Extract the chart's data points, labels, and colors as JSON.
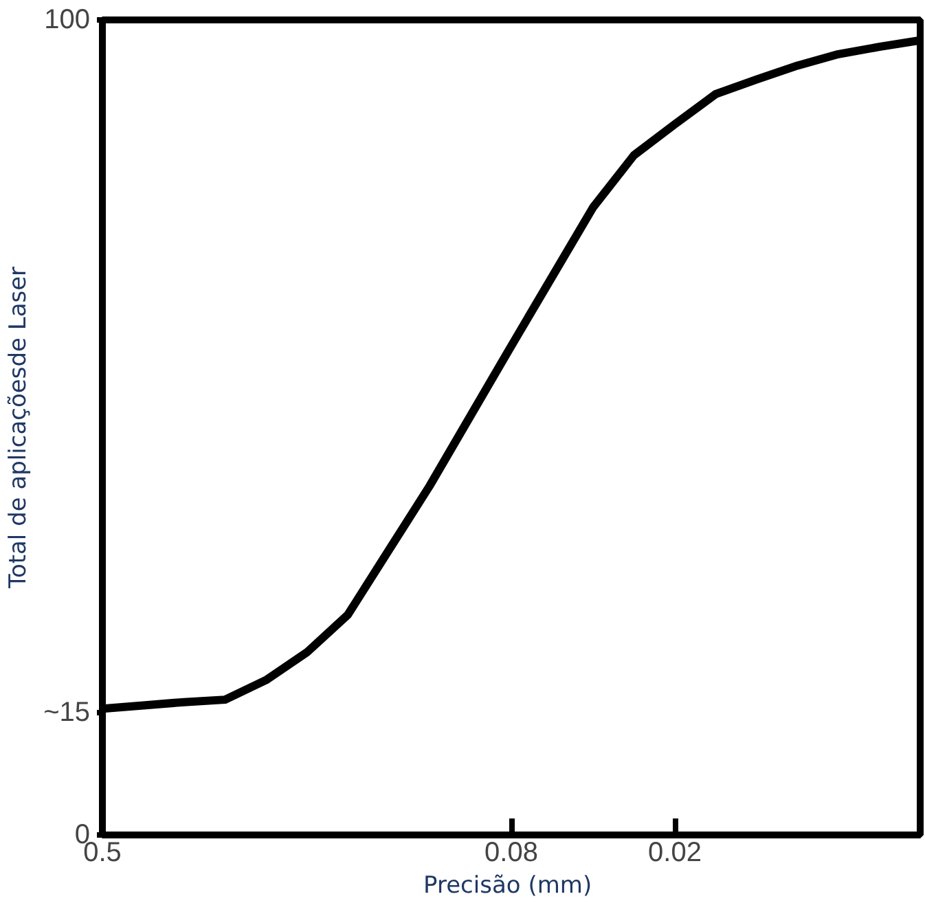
{
  "chart_data": {
    "type": "line",
    "xlabel": "Precisão  (mm)",
    "ylabel": "Total de aplicaçõesde Laser",
    "categories": [
      "0.5",
      null,
      null,
      null,
      null,
      null,
      null,
      null,
      null,
      null,
      "0.08",
      null,
      null,
      null,
      "0.02",
      null,
      null,
      null,
      null,
      null,
      null
    ],
    "series": [
      {
        "color": "#000000",
        "values": [
          15.5,
          15.9,
          16.3,
          16.6,
          19,
          22.4,
          27,
          34.9,
          42.8,
          51.4,
          60,
          68.5,
          77,
          83.4,
          87.2,
          90.9,
          92.7,
          94.4,
          95.8,
          96.7,
          97.5
        ]
      }
    ],
    "ylim": [
      0,
      100
    ],
    "yticks": [
      0,
      {
        "value": 15,
        "label": "~15"
      },
      100
    ],
    "grid": false,
    "marker": "none",
    "line_style": "solid"
  }
}
